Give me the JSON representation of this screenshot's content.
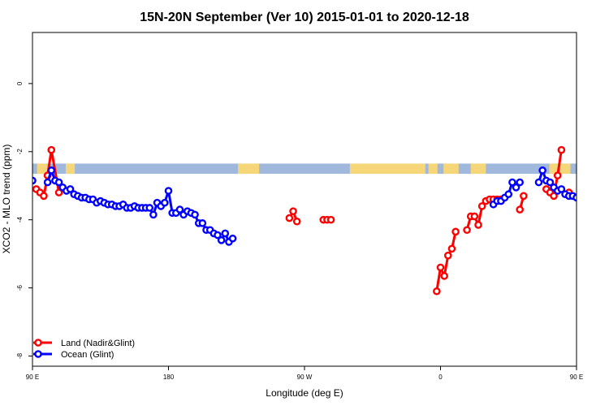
{
  "chart_data": {
    "type": "line",
    "title": "15N-20N September (Ver 10)   2015-01-01 to 2020-12-18",
    "xlabel": "Longitude (deg E)",
    "ylabel": "XCO2 - MLO trend (ppm)",
    "xlim": [
      90,
      450
    ],
    "ylim": [
      -8.3,
      1.5
    ],
    "x_ticks": [
      {
        "value": 90,
        "label": "90 E"
      },
      {
        "value": 180,
        "label": "180"
      },
      {
        "value": 270,
        "label": "90 W"
      },
      {
        "value": 360,
        "label": "0"
      },
      {
        "value": 450,
        "label": "90 E"
      },
      {
        "value": 540,
        "label": "180"
      }
    ],
    "y_ticks": [
      {
        "value": 0,
        "label": "0"
      },
      {
        "value": -2,
        "label": "-2"
      },
      {
        "value": -4,
        "label": "-4"
      },
      {
        "value": -6,
        "label": "-6"
      },
      {
        "value": -8,
        "label": "-8"
      }
    ],
    "legend_position": "bottom-left",
    "land_band": {
      "y_range": [
        -2.65,
        -2.35
      ],
      "ocean_color": "#9fb8dc",
      "land_color": "#f5d77a",
      "land_x_ranges": [
        [
          93,
          100
        ],
        [
          112,
          118
        ],
        [
          226,
          240
        ],
        [
          300,
          350
        ],
        [
          352,
          358
        ],
        [
          362,
          372
        ],
        [
          380,
          390
        ],
        [
          432,
          446
        ],
        [
          458,
          463
        ],
        [
          468,
          471
        ]
      ]
    },
    "series": [
      {
        "name": "Land (Nadir&Glint)",
        "color": "#ff0000",
        "segments": [
          [
            [
              92.5,
              -3.1
            ],
            [
              95,
              -3.2
            ],
            [
              97.5,
              -3.3
            ],
            [
              100,
              -2.7
            ],
            [
              102.5,
              -1.95
            ],
            [
              107.5,
              -3.2
            ]
          ],
          [
            [
              260,
              -3.95
            ],
            [
              262.5,
              -3.75
            ],
            [
              265,
              -4.05
            ]
          ],
          [
            [
              282.5,
              -4.0
            ],
            [
              285,
              -4.0
            ],
            [
              287.5,
              -4.0
            ]
          ],
          [
            [
              357.5,
              -6.1
            ],
            [
              360,
              -5.4
            ],
            [
              362.5,
              -5.65
            ],
            [
              365,
              -5.05
            ],
            [
              367.5,
              -4.85
            ],
            [
              370,
              -4.35
            ]
          ],
          [
            [
              377.5,
              -4.3
            ],
            [
              380,
              -3.9
            ],
            [
              382.5,
              -3.9
            ],
            [
              385,
              -4.15
            ],
            [
              387.5,
              -3.6
            ],
            [
              390,
              -3.45
            ],
            [
              392.5,
              -3.4
            ],
            [
              395,
              -3.4
            ],
            [
              397.5,
              -3.4
            ],
            [
              400,
              -3.4
            ]
          ],
          [
            [
              412.5,
              -3.7
            ],
            [
              415,
              -3.3
            ]
          ],
          [
            [
              430,
              -3.1
            ],
            [
              432.5,
              -3.2
            ],
            [
              435,
              -3.3
            ],
            [
              437.5,
              -2.7
            ],
            [
              440,
              -1.95
            ]
          ],
          [
            [
              445,
              -3.2
            ]
          ]
        ]
      },
      {
        "name": "Ocean (Glint)",
        "color": "#0000ff",
        "segments": [
          [
            [
              90,
              -2.85
            ]
          ],
          [
            [
              100,
              -2.9
            ],
            [
              102.5,
              -2.55
            ],
            [
              105,
              -2.85
            ],
            [
              107.5,
              -2.9
            ],
            [
              110,
              -3.05
            ],
            [
              112.5,
              -3.15
            ],
            [
              115,
              -3.1
            ],
            [
              117.5,
              -3.25
            ],
            [
              120,
              -3.3
            ],
            [
              122.5,
              -3.35
            ],
            [
              125,
              -3.35
            ],
            [
              127.5,
              -3.4
            ],
            [
              130,
              -3.4
            ],
            [
              132.5,
              -3.5
            ],
            [
              135,
              -3.45
            ],
            [
              137.5,
              -3.5
            ],
            [
              140,
              -3.55
            ],
            [
              142.5,
              -3.55
            ],
            [
              145,
              -3.6
            ],
            [
              147.5,
              -3.6
            ],
            [
              150,
              -3.55
            ],
            [
              152.5,
              -3.65
            ],
            [
              155,
              -3.65
            ],
            [
              157.5,
              -3.6
            ],
            [
              160,
              -3.65
            ],
            [
              162.5,
              -3.65
            ],
            [
              165,
              -3.65
            ],
            [
              167.5,
              -3.65
            ],
            [
              170,
              -3.85
            ],
            [
              172.5,
              -3.5
            ],
            [
              175,
              -3.6
            ],
            [
              177.5,
              -3.5
            ],
            [
              180,
              -3.15
            ],
            [
              182.5,
              -3.8
            ],
            [
              185,
              -3.8
            ],
            [
              187.5,
              -3.7
            ],
            [
              190,
              -3.85
            ],
            [
              192.5,
              -3.75
            ],
            [
              195,
              -3.8
            ],
            [
              197.5,
              -3.85
            ],
            [
              200,
              -4.1
            ],
            [
              202.5,
              -4.1
            ],
            [
              205,
              -4.3
            ],
            [
              207.5,
              -4.3
            ],
            [
              210,
              -4.4
            ],
            [
              212.5,
              -4.45
            ],
            [
              215,
              -4.6
            ],
            [
              217.5,
              -4.4
            ],
            [
              220,
              -4.65
            ],
            [
              222.5,
              -4.55
            ]
          ],
          [
            [
              395,
              -3.55
            ],
            [
              397.5,
              -3.45
            ],
            [
              400,
              -3.45
            ],
            [
              402.5,
              -3.35
            ],
            [
              405,
              -3.25
            ],
            [
              407.5,
              -2.9
            ],
            [
              410,
              -3.05
            ],
            [
              412.5,
              -2.9
            ]
          ],
          [
            [
              425,
              -2.9
            ],
            [
              427.5,
              -2.55
            ],
            [
              430,
              -2.85
            ],
            [
              432.5,
              -2.9
            ],
            [
              435,
              -3.05
            ],
            [
              437.5,
              -3.15
            ],
            [
              440,
              -3.1
            ],
            [
              442.5,
              -3.25
            ],
            [
              445,
              -3.3
            ],
            [
              447.5,
              -3.3
            ],
            [
              450,
              -3.35
            ],
            [
              452.5,
              -3.35
            ],
            [
              455,
              -3.35
            ],
            [
              457.5,
              -3.4
            ],
            [
              460,
              -3.4
            ],
            [
              462.5,
              -3.5
            ],
            [
              465,
              -3.45
            ]
          ]
        ]
      }
    ]
  }
}
